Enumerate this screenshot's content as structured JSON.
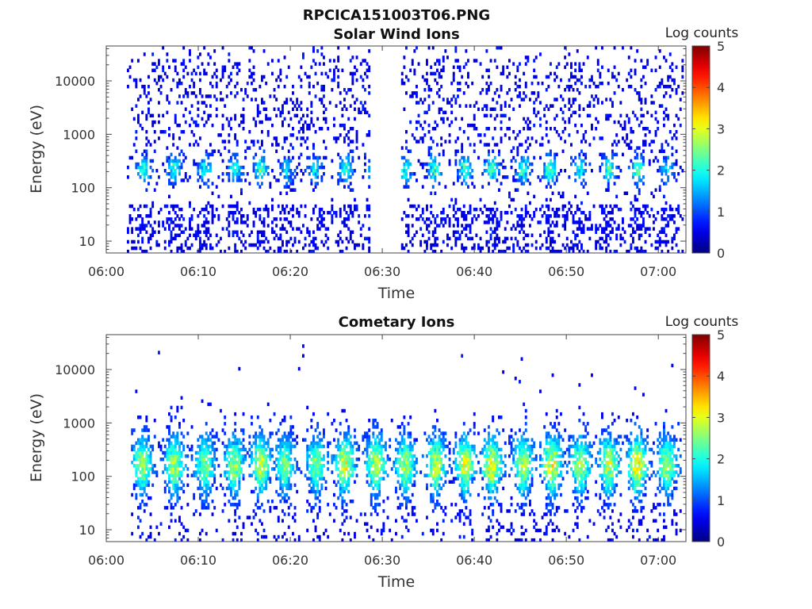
{
  "figure": {
    "title": "RPCICA151003T06.PNG"
  },
  "chart_data": [
    {
      "type": "heatmap",
      "title": "Solar Wind Ions",
      "xlabel": "Time",
      "ylabel": "Energy (eV)",
      "xlim": [
        "06:00",
        "07:03"
      ],
      "ylim": [
        6,
        45000
      ],
      "yscale": "log",
      "x_ticks": [
        "06:00",
        "06:10",
        "06:20",
        "06:30",
        "06:40",
        "06:50",
        "07:00"
      ],
      "y_ticks": [
        "10",
        "100",
        "1000",
        "10000"
      ],
      "colorbar": {
        "label": "Log counts",
        "range": [
          0,
          5
        ],
        "ticks": [
          "0",
          "1",
          "2",
          "3",
          "4",
          "5"
        ],
        "colormap": "jet"
      },
      "data_gap_minutes": [
        28.5,
        32.0
      ],
      "data_start_minute": 2.2,
      "data_end_minute": 62.7,
      "bursts": [
        {
          "t": 4.0,
          "log_counts": 2.0
        },
        {
          "t": 7.3,
          "log_counts": 1.8
        },
        {
          "t": 10.6,
          "log_counts": 1.7
        },
        {
          "t": 13.9,
          "log_counts": 1.8
        },
        {
          "t": 16.7,
          "log_counts": 2.1
        },
        {
          "t": 19.5,
          "log_counts": 1.4
        },
        {
          "t": 22.6,
          "log_counts": 1.5
        },
        {
          "t": 25.9,
          "log_counts": 1.9
        },
        {
          "t": 29.0,
          "log_counts": 1.8
        },
        {
          "t": 32.4,
          "log_counts": 1.8
        },
        {
          "t": 35.6,
          "log_counts": 2.0
        },
        {
          "t": 38.9,
          "log_counts": 2.0
        },
        {
          "t": 41.8,
          "log_counts": 2.1
        },
        {
          "t": 45.2,
          "log_counts": 1.9
        },
        {
          "t": 48.1,
          "log_counts": 2.1
        },
        {
          "t": 51.3,
          "log_counts": 1.6
        },
        {
          "t": 54.5,
          "log_counts": 1.9
        },
        {
          "t": 57.7,
          "log_counts": 2.1
        },
        {
          "t": 60.8,
          "log_counts": 1.4
        }
      ]
    },
    {
      "type": "heatmap",
      "title": "Cometary Ions",
      "xlabel": "Time",
      "ylabel": "Energy (eV)",
      "xlim": [
        "06:00",
        "07:03"
      ],
      "ylim": [
        6,
        45000
      ],
      "yscale": "log",
      "x_ticks": [
        "06:00",
        "06:10",
        "06:20",
        "06:30",
        "06:40",
        "06:50",
        "07:00"
      ],
      "y_ticks": [
        "10",
        "100",
        "1000",
        "10000"
      ],
      "colorbar": {
        "label": "Log counts",
        "range": [
          0,
          5
        ],
        "ticks": [
          "0",
          "1",
          "2",
          "3",
          "4",
          "5"
        ],
        "colormap": "jet"
      },
      "data_start_minute": 2.5,
      "data_end_minute": 62.5,
      "bursts": [
        {
          "t": 3.8,
          "log_counts": 2.4
        },
        {
          "t": 7.3,
          "log_counts": 2.5
        },
        {
          "t": 10.6,
          "log_counts": 2.2
        },
        {
          "t": 13.8,
          "log_counts": 2.4
        },
        {
          "t": 16.7,
          "log_counts": 2.6
        },
        {
          "t": 19.3,
          "log_counts": 2.2
        },
        {
          "t": 22.7,
          "log_counts": 2.3
        },
        {
          "t": 25.8,
          "log_counts": 2.8
        },
        {
          "t": 29.2,
          "log_counts": 2.7
        },
        {
          "t": 32.4,
          "log_counts": 2.5
        },
        {
          "t": 35.7,
          "log_counts": 2.7
        },
        {
          "t": 38.9,
          "log_counts": 2.8
        },
        {
          "t": 41.8,
          "log_counts": 2.9
        },
        {
          "t": 45.2,
          "log_counts": 2.6
        },
        {
          "t": 48.3,
          "log_counts": 2.9
        },
        {
          "t": 51.4,
          "log_counts": 2.5
        },
        {
          "t": 54.5,
          "log_counts": 2.6
        },
        {
          "t": 57.6,
          "log_counts": 3.0
        },
        {
          "t": 60.8,
          "log_counts": 2.5
        }
      ]
    }
  ]
}
